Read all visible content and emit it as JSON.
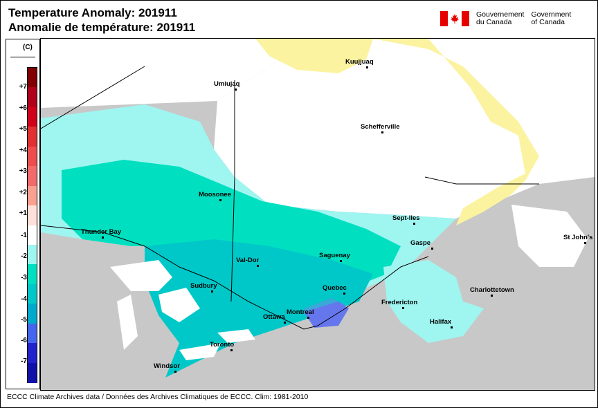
{
  "title_en": "Temperature Anomaly: 201911",
  "title_fr": "Anomalie de température: 201911",
  "gov": {
    "fr_line1": "Gouvernement",
    "fr_line2": "du Canada",
    "en_line1": "Government",
    "en_line2": "of Canada",
    "flag_icon": "canada-flag-icon"
  },
  "legend": {
    "unit": "(C)",
    "labels": [
      "+7",
      "+6",
      "+5",
      "+4",
      "+3",
      "+2",
      "+1",
      "-1",
      "-2",
      "-3",
      "-4",
      "-5",
      "-6",
      "-7"
    ],
    "colors": [
      "#800000",
      "#b0001a",
      "#d1001a",
      "#e03030",
      "#ee4d4d",
      "#f26a6a",
      "#f9a090",
      "#fde0d8",
      "#ffffff",
      "#9ff5f0",
      "#00e0c0",
      "#00c8c8",
      "#00aacc",
      "#4466ee",
      "#2222cc",
      "#1111aa"
    ]
  },
  "cities": [
    {
      "name": "Kuujjuaq"
    },
    {
      "name": "Umiujaq"
    },
    {
      "name": "Schefferville"
    },
    {
      "name": "Moosonee"
    },
    {
      "name": "Sept-Iles"
    },
    {
      "name": "Thunder Bay"
    },
    {
      "name": "Gaspe"
    },
    {
      "name": "St John's"
    },
    {
      "name": "Val-Dor"
    },
    {
      "name": "Saguenay"
    },
    {
      "name": "Sudbury"
    },
    {
      "name": "Quebec"
    },
    {
      "name": "Charlottetown"
    },
    {
      "name": "Fredericton"
    },
    {
      "name": "Montreal"
    },
    {
      "name": "Ottawa"
    },
    {
      "name": "Halifax"
    },
    {
      "name": "Toronto"
    },
    {
      "name": "Windsor"
    }
  ],
  "map_colors": {
    "land_outside": "#c8c8c8",
    "water": "#ffffff",
    "anom_warm": "#fbf3a0",
    "anom_0": "#ffffff",
    "anom_m2": "#9ff5f0",
    "anom_m3": "#00e0c0",
    "anom_m4": "#00c8c8",
    "anom_m5": "#3aa8d8",
    "anom_m6": "#6677ee"
  },
  "footer": "ECCC Climate Archives data / Données des Archives Climatiques de ECCC. Clim: 1981-2010"
}
